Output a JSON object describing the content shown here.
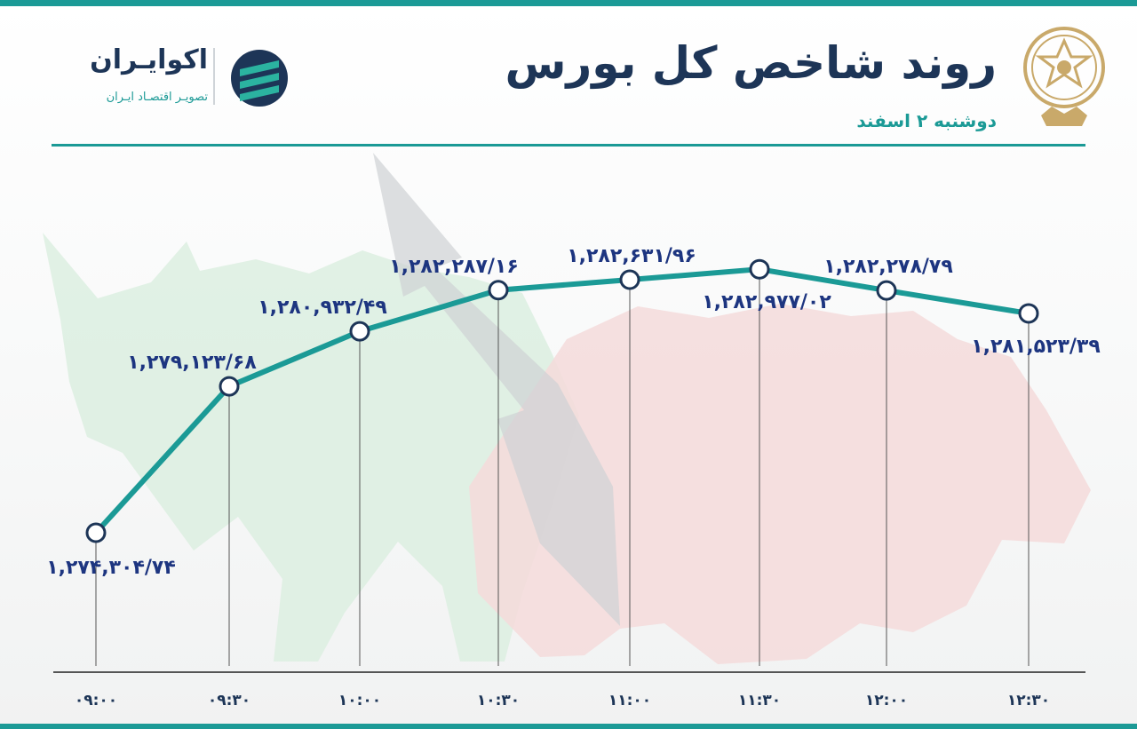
{
  "header": {
    "title": "روند شاخص کل بورس",
    "subtitle": "دوشنبه ۲ اسفند"
  },
  "brand": {
    "name": "اکوایـران",
    "tagline": "تصویـر اقتصـاد ایـران",
    "icon": "ecoiran-logo-icon"
  },
  "seal": {
    "icon": "tehran-stock-exchange-seal-icon"
  },
  "colors": {
    "accent": "#1b9a96",
    "title": "#1d3557",
    "annotation": "#1d3580",
    "bull": "#d6eddc",
    "bear": "#f3d6d6"
  },
  "chart_data": {
    "type": "line",
    "title": "روند شاخص کل بورس",
    "subtitle": "دوشنبه ۲ اسفند",
    "xlabel": "",
    "ylabel": "",
    "x": [
      "۰۹:۰۰",
      "۰۹:۳۰",
      "۱۰:۰۰",
      "۱۰:۳۰",
      "۱۱:۰۰",
      "۱۱:۳۰",
      "۱۲:۰۰",
      "۱۲:۳۰"
    ],
    "series": [
      {
        "values": [
          1274304.74,
          1279123.68,
          1280932.49,
          1282287.16,
          1282631.96,
          1282977.02,
          1282278.79,
          1281523.39
        ],
        "labels": [
          "۱,۲۷۴,۳۰۴/۷۴",
          "۱,۲۷۹,۱۲۳/۶۸",
          "۱,۲۸۰,۹۳۲/۴۹",
          "۱,۲۸۲,۲۸۷/۱۶",
          "۱,۲۸۲,۶۳۱/۹۶",
          "۱,۲۸۲,۹۷۷/۰۲",
          "۱,۲۸۲,۲۷۸/۷۹",
          "۱,۲۸۱,۵۲۳/۳۹"
        ]
      }
    ],
    "grid": false,
    "legend": "none"
  }
}
